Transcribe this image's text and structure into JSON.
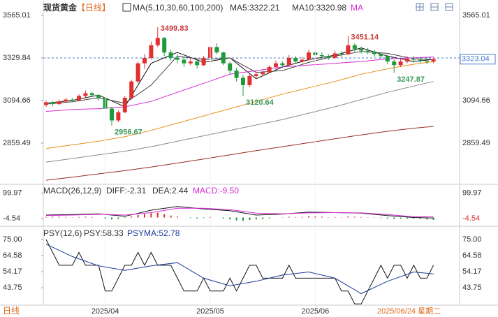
{
  "chart_data": {
    "type": "candlestick",
    "title": "现货黄金",
    "period": "【日线】",
    "legend_title": "MA(5,10,30,60,100,200)",
    "indicator_texts": [
      "MA5:3322.21",
      "MA10:3320.98",
      "MA"
    ],
    "ylim": [
      2640,
      3611
    ],
    "yticks": [
      3565.01,
      3329.84,
      3094.66,
      2859.49
    ],
    "up_color": "#e03030",
    "down_color": "#1f9a3a",
    "categories": [
      null,
      null,
      null,
      null,
      null,
      null,
      null,
      null,
      null,
      "2025/04",
      null,
      null,
      null,
      null,
      null,
      null,
      null,
      null,
      null,
      null,
      null,
      null,
      null,
      null,
      null,
      "2025/05",
      null,
      null,
      null,
      null,
      null,
      null,
      null,
      null,
      null,
      null,
      null,
      null,
      null,
      null,
      null,
      "2025/06",
      null,
      null,
      null,
      null,
      null,
      null,
      null,
      null,
      null,
      null,
      null,
      null,
      null,
      null,
      null,
      null,
      null,
      null
    ],
    "candles": [
      [
        3070,
        3095,
        3060,
        3085
      ],
      [
        3085,
        3092,
        3065,
        3075
      ],
      [
        3075,
        3100,
        3070,
        3090
      ],
      [
        3090,
        3110,
        3082,
        3100
      ],
      [
        3100,
        3108,
        3085,
        3095
      ],
      [
        3095,
        3130,
        3090,
        3120
      ],
      [
        3120,
        3150,
        3112,
        3135
      ],
      [
        3135,
        3142,
        3115,
        3125
      ],
      [
        3125,
        3130,
        3095,
        3110
      ],
      [
        3110,
        3115,
        3040,
        3050
      ],
      [
        3050,
        3060,
        2956.67,
        2985
      ],
      [
        2985,
        3040,
        2975,
        3030
      ],
      [
        3030,
        3120,
        3025,
        3110
      ],
      [
        3110,
        3210,
        3100,
        3200
      ],
      [
        3200,
        3310,
        3190,
        3300
      ],
      [
        3300,
        3350,
        3270,
        3330
      ],
      [
        3330,
        3420,
        3320,
        3400
      ],
      [
        3400,
        3499.83,
        3390,
        3440
      ],
      [
        3440,
        3445,
        3340,
        3360
      ],
      [
        3360,
        3375,
        3315,
        3330
      ],
      [
        3330,
        3350,
        3300,
        3320
      ],
      [
        3320,
        3335,
        3280,
        3300
      ],
      [
        3300,
        3330,
        3290,
        3310
      ],
      [
        3310,
        3318,
        3270,
        3290
      ],
      [
        3290,
        3340,
        3285,
        3330
      ],
      [
        3330,
        3420,
        3325,
        3390
      ],
      [
        3390,
        3410,
        3350,
        3360
      ],
      [
        3360,
        3365,
        3290,
        3300
      ],
      [
        3300,
        3310,
        3240,
        3260
      ],
      [
        3260,
        3275,
        3200,
        3220
      ],
      [
        3220,
        3235,
        3120.64,
        3180
      ],
      [
        3180,
        3240,
        3170,
        3230
      ],
      [
        3230,
        3255,
        3215,
        3240
      ],
      [
        3240,
        3262,
        3228,
        3250
      ],
      [
        3250,
        3290,
        3245,
        3280
      ],
      [
        3280,
        3315,
        3270,
        3300
      ],
      [
        3300,
        3310,
        3275,
        3290
      ],
      [
        3290,
        3345,
        3285,
        3330
      ],
      [
        3330,
        3340,
        3298,
        3310
      ],
      [
        3310,
        3335,
        3300,
        3320
      ],
      [
        3320,
        3375,
        3315,
        3360
      ],
      [
        3360,
        3370,
        3330,
        3345
      ],
      [
        3345,
        3360,
        3325,
        3340
      ],
      [
        3340,
        3352,
        3318,
        3330
      ],
      [
        3330,
        3370,
        3325,
        3355
      ],
      [
        3355,
        3368,
        3335,
        3350
      ],
      [
        3350,
        3451.14,
        3345,
        3400
      ],
      [
        3400,
        3410,
        3365,
        3380
      ],
      [
        3380,
        3392,
        3355,
        3370
      ],
      [
        3370,
        3385,
        3350,
        3365
      ],
      [
        3365,
        3372,
        3335,
        3350
      ],
      [
        3350,
        3362,
        3325,
        3340
      ],
      [
        3340,
        3348,
        3295,
        3310
      ],
      [
        3310,
        3320,
        3247.87,
        3290
      ],
      [
        3290,
        3325,
        3280,
        3310
      ],
      [
        3310,
        3338,
        3300,
        3325
      ],
      [
        3325,
        3340,
        3305,
        3320
      ],
      [
        3320,
        3335,
        3302,
        3315
      ],
      [
        3315,
        3328,
        3295,
        3310
      ],
      [
        3310,
        3332,
        3300,
        3323.04
      ]
    ],
    "series": [
      {
        "name": "MA5",
        "color": "#111111",
        "x": [
          0,
          4,
          8,
          12,
          16,
          20,
          24,
          28,
          32,
          36,
          40,
          44,
          48,
          52,
          56,
          59
        ],
        "values": [
          3080,
          3095,
          3125,
          3060,
          3300,
          3360,
          3305,
          3330,
          3215,
          3280,
          3320,
          3345,
          3385,
          3340,
          3310,
          3322.21
        ]
      },
      {
        "name": "MA10",
        "color": "#444444",
        "x": [
          0,
          4,
          8,
          12,
          16,
          20,
          24,
          28,
          32,
          36,
          40,
          44,
          48,
          52,
          56,
          59
        ],
        "values": [
          3075,
          3088,
          3110,
          3080,
          3180,
          3340,
          3320,
          3330,
          3250,
          3260,
          3305,
          3340,
          3365,
          3355,
          3325,
          3320.98
        ]
      },
      {
        "name": "MA30",
        "color": "#d62ad6",
        "x": [
          0,
          4,
          8,
          12,
          16,
          20,
          24,
          28,
          32,
          36,
          40,
          44,
          48,
          52,
          56,
          59
        ],
        "values": [
          3035,
          3045,
          3050,
          3060,
          3090,
          3140,
          3190,
          3240,
          3260,
          3280,
          3290,
          3300,
          3310,
          3325,
          3330,
          3335
        ]
      },
      {
        "name": "MA60",
        "color": "#e8901a",
        "x": [
          0,
          4,
          8,
          12,
          16,
          20,
          24,
          28,
          32,
          36,
          40,
          44,
          48,
          52,
          56,
          59
        ],
        "values": [
          2830,
          2850,
          2870,
          2895,
          2930,
          2970,
          3010,
          3050,
          3090,
          3130,
          3165,
          3200,
          3240,
          3270,
          3295,
          3310
        ]
      },
      {
        "name": "MA100",
        "color": "#8a8a8a",
        "x": [
          0,
          4,
          8,
          12,
          16,
          20,
          24,
          28,
          32,
          36,
          40,
          44,
          48,
          52,
          56,
          59
        ],
        "values": [
          2755,
          2775,
          2795,
          2815,
          2840,
          2870,
          2900,
          2930,
          2960,
          2990,
          3025,
          3060,
          3100,
          3140,
          3175,
          3200
        ]
      },
      {
        "name": "MA200",
        "color": "#9b2b22",
        "x": [
          0,
          4,
          8,
          12,
          16,
          20,
          24,
          28,
          32,
          36,
          40,
          44,
          48,
          52,
          56,
          59
        ],
        "values": [
          2655,
          2672,
          2690,
          2708,
          2728,
          2750,
          2772,
          2795,
          2818,
          2840,
          2862,
          2884,
          2905,
          2925,
          2942,
          2952
        ]
      }
    ],
    "macd": {
      "title": "MACD(26,12,9)",
      "texts": [
        "DIFF:-2.31",
        "DEA:2.44",
        "MACD:-9.50"
      ],
      "ylim": [
        -30,
        130
      ],
      "yticks": [
        99.97,
        -4.54
      ],
      "series": [
        {
          "name": "DIFF",
          "color": "#111111",
          "x": [
            0,
            4,
            8,
            12,
            16,
            20,
            24,
            28,
            32,
            36,
            40,
            44,
            48,
            52,
            56,
            59
          ],
          "values": [
            10,
            12,
            15,
            5,
            30,
            45,
            35,
            28,
            10,
            14,
            22,
            20,
            18,
            8,
            0,
            -2.31
          ]
        },
        {
          "name": "DEA",
          "color": "#d62ad6",
          "x": [
            0,
            4,
            8,
            12,
            16,
            20,
            24,
            28,
            32,
            36,
            40,
            44,
            48,
            52,
            56,
            59
          ],
          "values": [
            8,
            10,
            13,
            10,
            20,
            38,
            38,
            32,
            18,
            15,
            19,
            20,
            19,
            12,
            3,
            2.44
          ]
        }
      ],
      "histogram": [
        2,
        3,
        3,
        2,
        1,
        2,
        3,
        2,
        0,
        -4,
        -8,
        -6,
        -2,
        4,
        10,
        14,
        18,
        20,
        14,
        8,
        4,
        0,
        -2,
        -4,
        -2,
        2,
        0,
        -4,
        -8,
        -12,
        -14,
        -10,
        -8,
        -6,
        -3,
        0,
        1,
        3,
        2,
        2,
        5,
        4,
        3,
        1,
        2,
        1,
        4,
        3,
        2,
        1,
        -1,
        -2,
        -4,
        -6,
        -5,
        -4,
        -4,
        -6,
        -8,
        -9.5
      ]
    },
    "psy": {
      "title": "PSY(12,6)",
      "texts": [
        "PSY:58.33",
        "PSYMA:52.78"
      ],
      "ylim": [
        33,
        82.7
      ],
      "yticks": [
        {
          "value": 75,
          "label": "75.00"
        },
        64.58,
        54.17,
        43.75
      ],
      "values": [
        75,
        66.67,
        58.33,
        58.33,
        58.33,
        66.67,
        58.33,
        58.33,
        58.33,
        41.67,
        41.67,
        50,
        58.33,
        58.33,
        66.67,
        58.33,
        66.67,
        58.33,
        58.33,
        58.33,
        50,
        41.67,
        41.67,
        41.67,
        50,
        41.67,
        41.67,
        41.67,
        50,
        41.67,
        50,
        58.33,
        58.33,
        50,
        50,
        50,
        50,
        58.33,
        50,
        50,
        50,
        50,
        50,
        50,
        50,
        41.67,
        41.67,
        33.33,
        33.33,
        41.67,
        50,
        58.33,
        50,
        58.33,
        58.33,
        50,
        58.33,
        50,
        50,
        58.33
      ],
      "psyma": {
        "x": [
          0,
          4,
          8,
          12,
          16,
          20,
          24,
          28,
          32,
          36,
          40,
          44,
          48,
          52,
          56,
          59
        ],
        "values": [
          72,
          64,
          58,
          55,
          58,
          60,
          50,
          45,
          48,
          52,
          54,
          50,
          40,
          48,
          54,
          52.78
        ]
      }
    },
    "footer_left": "日线",
    "footer_right": "2025/06/24 星期二"
  }
}
